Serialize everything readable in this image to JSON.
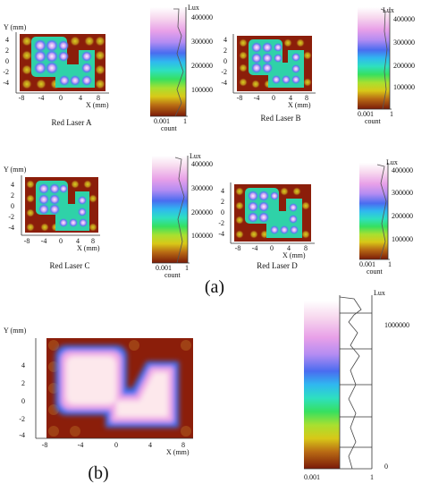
{
  "figure_labels": {
    "part_a": "(a)",
    "part_b": "(b)"
  },
  "panels": [
    {
      "caption": "Red Laser A",
      "x_title": "X (mm)",
      "y_title": "Y (mm)",
      "x_ticks": [
        "-8",
        "-4",
        "0",
        "4",
        "8"
      ],
      "y_ticks": [
        "4",
        "2",
        "0",
        "-2",
        "-4"
      ]
    },
    {
      "caption": "Red Laser B",
      "x_title": "X (mm)",
      "y_title": "",
      "x_ticks": [
        "-8",
        "-4",
        "0",
        "4",
        "8"
      ],
      "y_ticks": [
        "4",
        "2",
        "0",
        "-2",
        "-4"
      ]
    },
    {
      "caption": "Red Laser C",
      "x_title": "X (mm)",
      "y_title": "Y (mm)",
      "x_ticks": [
        "-8",
        "-4",
        "0",
        "4",
        "8"
      ],
      "y_ticks": [
        "4",
        "2",
        "0",
        "-2",
        "-4"
      ]
    },
    {
      "caption": "Red Laser D",
      "x_title": "X (mm)",
      "y_title": "",
      "x_ticks": [
        "-8",
        "-4",
        "0",
        "4",
        "8"
      ],
      "y_ticks": [
        "4",
        "2",
        "0",
        "-2",
        "-4"
      ]
    },
    {
      "caption": "",
      "x_title": "X (mm)",
      "y_title": "Y (mm)",
      "x_ticks": [
        "-8",
        "-4",
        "0",
        "4",
        "8"
      ],
      "y_ticks": [
        "4",
        "2",
        "0",
        "-2",
        "-4"
      ]
    }
  ],
  "colorbars": [
    {
      "unit": "Lux",
      "ticks": [
        "400000",
        "300000",
        "200000",
        "100000"
      ],
      "count_label": "count",
      "count_ticks": [
        "0.001",
        "1"
      ]
    },
    {
      "unit": "Lux",
      "ticks": [
        "400000",
        "300000",
        "200000",
        "100000"
      ],
      "count_label": "count",
      "count_ticks": [
        "0.001",
        "1"
      ]
    },
    {
      "unit": "Lux",
      "ticks": [
        "400000",
        "300000",
        "200000",
        "100000"
      ],
      "count_label": "count",
      "count_ticks": [
        "0.001",
        "1"
      ]
    },
    {
      "unit": "Lux",
      "ticks": [
        "400000",
        "300000",
        "200000",
        "100000"
      ],
      "count_label": "count",
      "count_ticks": [
        "0.001",
        "1"
      ]
    },
    {
      "unit": "Lux",
      "ticks": [
        "1000000",
        "0"
      ],
      "count_label": "",
      "count_ticks": [
        "0.001",
        "1"
      ]
    }
  ],
  "colors": {
    "background": "#8b1e0a",
    "peak": "#fff0f5"
  }
}
